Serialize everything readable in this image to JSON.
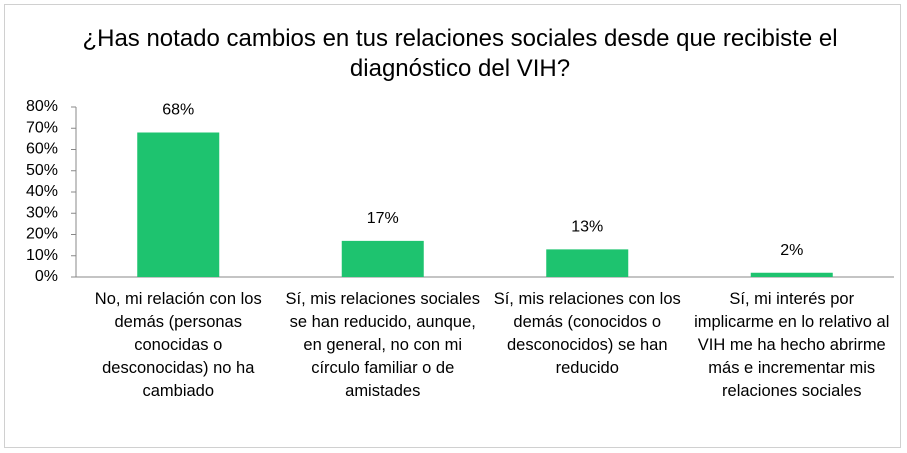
{
  "chart_data": {
    "type": "bar",
    "title": "¿Has notado cambios en tus relaciones sociales desde que recibiste el diagnóstico del VIH?",
    "categories": [
      "No, mi relación con los demás (personas conocidas o desconocidas) no ha cambiado",
      "Sí, mis relaciones sociales se han reducido, aunque, en general, no con mi círculo familiar o de amistades",
      "Sí, mis relaciones con los demás (conocidos o desconocidos) se han reducido",
      "Sí, mi interés por implicarme en lo relativo al VIH me ha hecho abrirme más e incrementar mis relaciones sociales"
    ],
    "values": [
      68,
      17,
      13,
      2
    ],
    "value_labels": [
      "68%",
      "17%",
      "13%",
      "2%"
    ],
    "color": "#1ec36f",
    "ylim": [
      0,
      80
    ],
    "yticks": [
      {
        "value": 0,
        "label": "0%"
      },
      {
        "value": 10,
        "label": "10%"
      },
      {
        "value": 20,
        "label": "20%"
      },
      {
        "value": 30,
        "label": "30%"
      },
      {
        "value": 40,
        "label": "40%"
      },
      {
        "value": 50,
        "label": "50%"
      },
      {
        "value": 60,
        "label": "60%"
      },
      {
        "value": 70,
        "label": "70%"
      },
      {
        "value": 80,
        "label": "80%"
      }
    ],
    "grid": false
  }
}
